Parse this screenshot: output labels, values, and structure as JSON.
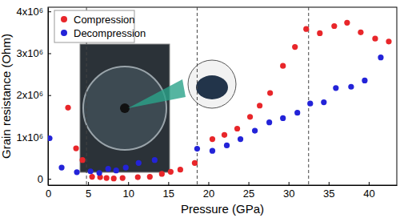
{
  "chart_data": {
    "type": "scatter",
    "x_label": "Pressure (GPa)",
    "y_label": "Grain resistance (Ohm)",
    "xlim": [
      0,
      43.5
    ],
    "ylim": [
      -150000,
      4100000
    ],
    "xticks": [
      0,
      5,
      10,
      15,
      20,
      25,
      30,
      35,
      40
    ],
    "yticks": [
      0,
      {
        "value": 1000000,
        "label": "1x10⁶"
      },
      {
        "value": 2000000,
        "label": "2x10⁶"
      },
      {
        "value": 3000000,
        "label": "3x10⁶"
      },
      {
        "value": 4000000,
        "label": "4x10⁶"
      }
    ],
    "legend": "upper left",
    "vlines": [
      4.8,
      18.6,
      32.5
    ],
    "series": [
      {
        "name": "Compression",
        "color": "#e8262a",
        "marker": "circle",
        "x": [
          2.5,
          3.5,
          4.3,
          5.5,
          6.5,
          7.3,
          8.2,
          9.3,
          11.2,
          12.7,
          14.2,
          15.3,
          16.5,
          18.3,
          20.5,
          22.0,
          23.6,
          25.2,
          26.4,
          27.7,
          29.3,
          30.8,
          32.2,
          33.9,
          35.7,
          37.3,
          39.0,
          40.8,
          42.5
        ],
        "values": [
          1700000,
          730000,
          450000,
          50000,
          40000,
          20000,
          10000,
          20000,
          40000,
          50000,
          120000,
          170000,
          220000,
          380000,
          950000,
          1050000,
          1200000,
          1480000,
          1750000,
          2050000,
          2700000,
          3150000,
          3580000,
          3480000,
          3650000,
          3730000,
          3500000,
          3350000,
          3280000
        ]
      },
      {
        "name": "Decompression",
        "color": "#2323d8",
        "marker": "circle",
        "x": [
          0.2,
          1.7,
          3.6,
          5.3,
          6.4,
          7.5,
          8.5,
          9.7,
          11.3,
          13.3,
          18.6,
          20.5,
          22.3,
          24.0,
          25.8,
          27.6,
          29.3,
          31.1,
          32.7,
          34.4,
          35.9,
          37.8,
          39.5,
          41.5
        ],
        "values": [
          970000,
          270000,
          160000,
          180000,
          140000,
          240000,
          200000,
          270000,
          380000,
          450000,
          720000,
          670000,
          800000,
          950000,
          1150000,
          1350000,
          1450000,
          1580000,
          1800000,
          1830000,
          2170000,
          2200000,
          2350000,
          2900000
        ]
      }
    ]
  }
}
